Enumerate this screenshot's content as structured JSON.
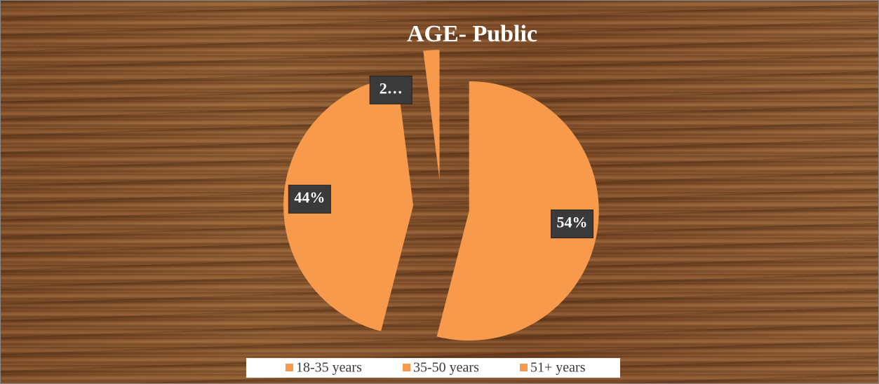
{
  "chart_data": {
    "type": "pie",
    "title": "AGE- Public",
    "categories": [
      "18-35 years",
      "35-50 years",
      "51+ years"
    ],
    "values": [
      54,
      44,
      2
    ],
    "value_labels": [
      "54%",
      "44%",
      "2…"
    ],
    "color": "#f79a4c"
  }
}
